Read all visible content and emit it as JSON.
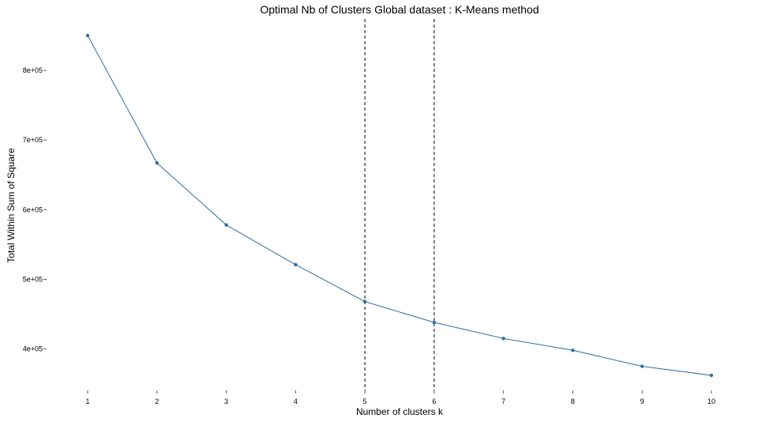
{
  "chart_data": {
    "type": "line",
    "title": "Optimal Nb of Clusters Global dataset : K-Means method",
    "xlabel": "Number of clusters k",
    "ylabel": "Total Within Sum of Square",
    "x": [
      1,
      2,
      3,
      4,
      5,
      6,
      7,
      8,
      9,
      10
    ],
    "series": [
      {
        "values": [
          850000,
          667000,
          578000,
          521000,
          468000,
          438000,
          415000,
          398000,
          375000,
          362000
        ]
      }
    ],
    "x_ticks": [
      "1",
      "2",
      "3",
      "4",
      "5",
      "6",
      "7",
      "8",
      "9",
      "10"
    ],
    "y_ticks": [
      400000,
      500000,
      600000,
      700000,
      800000
    ],
    "y_tick_labels": [
      "4e+05",
      "5e+05",
      "6e+05",
      "7e+05",
      "8e+05"
    ],
    "vlines": [
      5,
      6
    ],
    "xlim": [
      1,
      10
    ],
    "ylim": [
      362000,
      850000
    ],
    "grid": false,
    "line_color": "#2e6fa7"
  }
}
